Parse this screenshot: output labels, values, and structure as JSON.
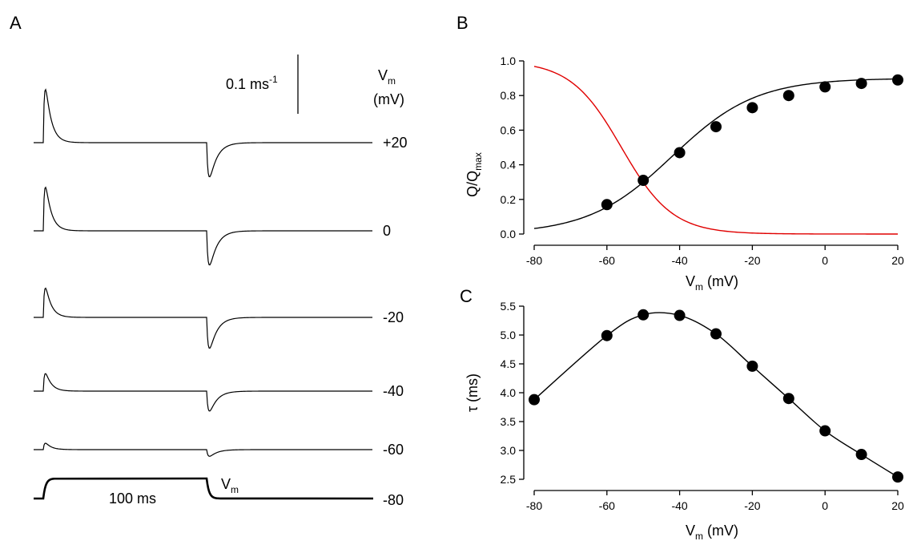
{
  "panels": {
    "a": "A",
    "b": "B",
    "c": "C"
  },
  "chart_data": [
    {
      "panel": "A",
      "type": "line",
      "scale_bar_label": "0.1 ms",
      "scale_bar_exp": "-1",
      "vm_header": "V",
      "vm_header_sub": "m",
      "vm_unit": "(mV)",
      "protocol_label": "100 ms",
      "protocol_vm": "V",
      "protocol_vm_sub": "m",
      "traces": [
        {
          "label": "+20",
          "on_peak": 1.0,
          "off_peak": 0.72
        },
        {
          "label": "0",
          "on_peak": 0.82,
          "off_peak": 0.72
        },
        {
          "label": "-20",
          "on_peak": 0.55,
          "off_peak": 0.65
        },
        {
          "label": "-40",
          "on_peak": 0.33,
          "off_peak": 0.42
        },
        {
          "label": "-60",
          "on_peak": 0.12,
          "off_peak": 0.14
        }
      ],
      "holding_label": "-80"
    },
    {
      "panel": "B",
      "type": "line",
      "xlabel": "V",
      "xlabel_sub": "m",
      "xlabel_unit": " (mV)",
      "ylabel": "Q/Q",
      "ylabel_sub": "max",
      "xlim": [
        -80,
        20
      ],
      "ylim": [
        0,
        1
      ],
      "xticks": [
        "-80",
        "-60",
        "-40",
        "-20",
        "0",
        "20"
      ],
      "yticks": [
        "0.0",
        "0.2",
        "0.4",
        "0.6",
        "0.8",
        "1.0"
      ],
      "points": {
        "x": [
          -60,
          -50,
          -40,
          -30,
          -20,
          -10,
          0,
          10,
          20
        ],
        "y": [
          0.17,
          0.31,
          0.47,
          0.62,
          0.73,
          0.8,
          0.85,
          0.87,
          0.89
        ]
      },
      "fit": {
        "qmax": 0.9,
        "vhalf": -42,
        "k": 11.5
      },
      "inactivation": {
        "vhalf": -56,
        "k": 7,
        "color": "#e00000"
      }
    },
    {
      "panel": "C",
      "type": "line",
      "xlabel": "V",
      "xlabel_sub": "m",
      "xlabel_unit": " (mV)",
      "ylabel": "τ (ms)",
      "xlim": [
        -80,
        20
      ],
      "ylim": [
        2.5,
        5.5
      ],
      "xticks": [
        "-80",
        "-60",
        "-40",
        "-20",
        "0",
        "20"
      ],
      "yticks": [
        "2.5",
        "3.0",
        "3.5",
        "4.0",
        "4.5",
        "5.0",
        "5.5"
      ],
      "points": {
        "x": [
          -80,
          -60,
          -50,
          -40,
          -30,
          -20,
          -10,
          0,
          10,
          20
        ],
        "y": [
          3.88,
          4.99,
          5.35,
          5.34,
          5.02,
          4.46,
          3.9,
          3.34,
          2.93,
          2.54
        ]
      }
    }
  ]
}
